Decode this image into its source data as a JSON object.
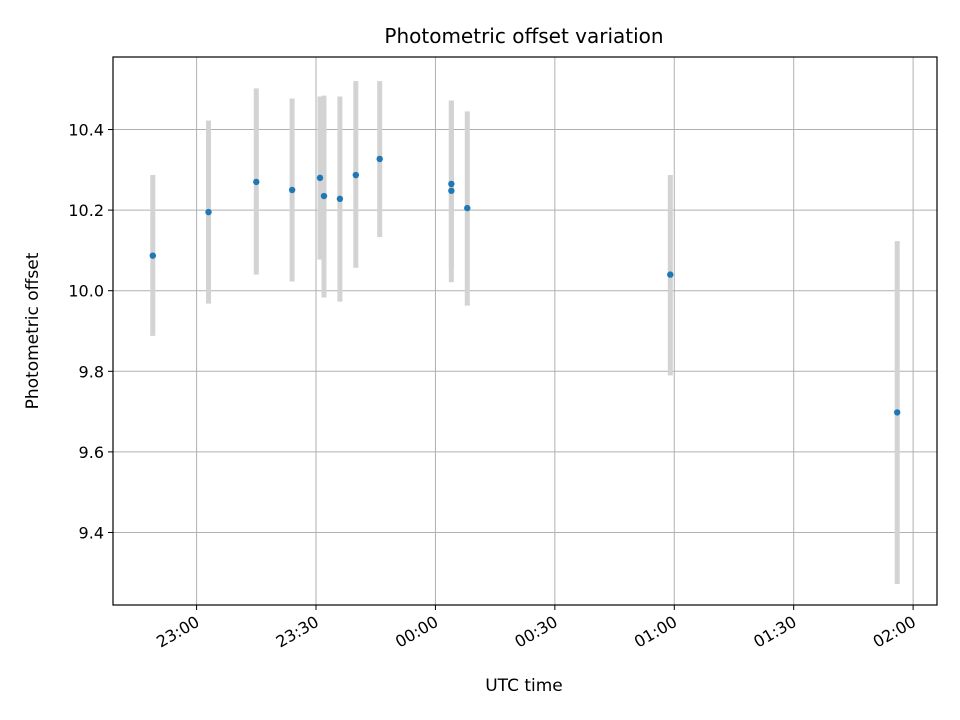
{
  "chart_data": {
    "type": "scatter",
    "title": "Photometric offset variation",
    "xlabel": "UTC time",
    "ylabel": "Photometric offset",
    "x_axis_kind": "time",
    "xlim": [
      "22:39",
      "02:06"
    ],
    "ylim": [
      9.22,
      10.58
    ],
    "grid": true,
    "x_ticks": [
      "23:00",
      "23:30",
      "00:00",
      "00:30",
      "01:00",
      "01:30",
      "02:00"
    ],
    "y_ticks": [
      9.4,
      9.6,
      9.8,
      10.0,
      10.2,
      10.4
    ],
    "y_tick_labels": [
      "9.4",
      "9.6",
      "9.8",
      "10.0",
      "10.2",
      "10.4"
    ],
    "marker_color": "#1f77b4",
    "errorbar_color": "#d3d3d3",
    "points": [
      {
        "x": "22:49",
        "y": 10.087,
        "err_low": 9.888,
        "err_high": 10.287
      },
      {
        "x": "23:03",
        "y": 10.195,
        "err_low": 9.968,
        "err_high": 10.422
      },
      {
        "x": "23:15",
        "y": 10.27,
        "err_low": 10.04,
        "err_high": 10.502
      },
      {
        "x": "23:24",
        "y": 10.25,
        "err_low": 10.023,
        "err_high": 10.477
      },
      {
        "x": "23:31",
        "y": 10.28,
        "err_low": 10.077,
        "err_high": 10.482
      },
      {
        "x": "23:32",
        "y": 10.235,
        "err_low": 9.983,
        "err_high": 10.484
      },
      {
        "x": "23:36",
        "y": 10.228,
        "err_low": 9.973,
        "err_high": 10.482
      },
      {
        "x": "23:40",
        "y": 10.287,
        "err_low": 10.057,
        "err_high": 10.52
      },
      {
        "x": "23:46",
        "y": 10.327,
        "err_low": 10.133,
        "err_high": 10.52
      },
      {
        "x": "00:04",
        "y": 10.248,
        "err_low": 10.021,
        "err_high": 10.472
      },
      {
        "x": "00:04",
        "y": 10.265,
        "err_low": 10.058,
        "err_high": 10.47
      },
      {
        "x": "00:08",
        "y": 10.205,
        "err_low": 9.963,
        "err_high": 10.445
      },
      {
        "x": "00:59",
        "y": 10.04,
        "err_low": 9.79,
        "err_high": 10.287
      },
      {
        "x": "01:56",
        "y": 9.698,
        "err_low": 9.272,
        "err_high": 10.123
      }
    ]
  }
}
